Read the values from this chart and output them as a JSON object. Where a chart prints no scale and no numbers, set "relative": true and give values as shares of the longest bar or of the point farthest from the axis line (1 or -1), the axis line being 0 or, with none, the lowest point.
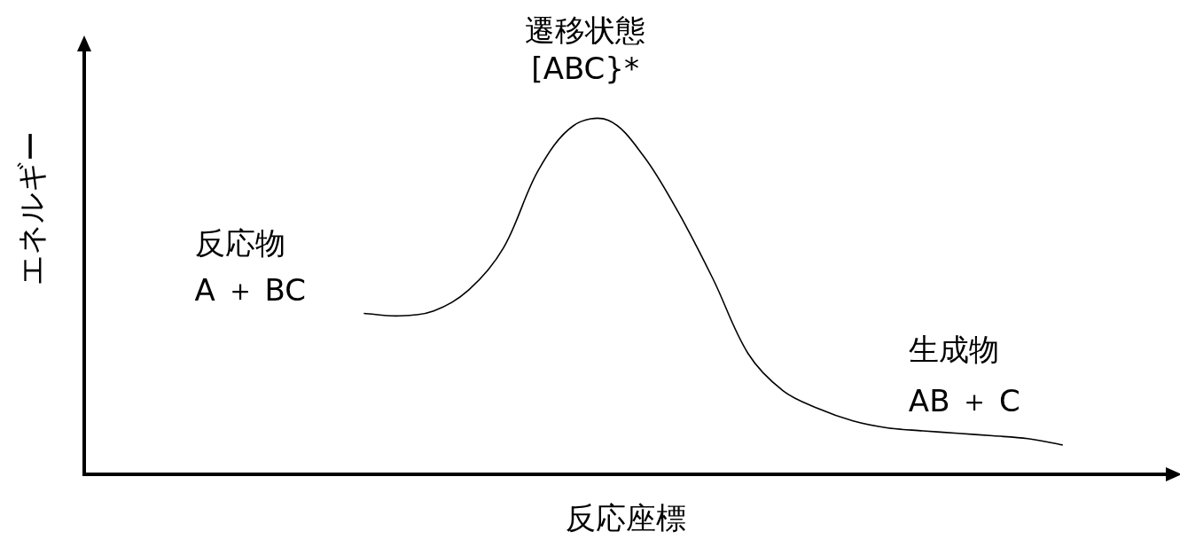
{
  "chart_data": {
    "type": "line",
    "relative": true,
    "xlabel": "反応座標",
    "ylabel": "エネルギー",
    "categories": [
      null,
      null,
      null,
      null,
      null,
      null,
      null,
      null,
      null,
      null,
      null,
      null,
      null,
      null,
      null,
      null,
      null,
      null,
      null,
      null,
      null,
      null,
      null,
      null,
      null,
      null,
      null,
      null,
      null,
      null,
      null,
      null
    ],
    "series": [
      {
        "color": "#000000",
        "values": [
          null,
          null,
          null,
          null,
          null,
          null,
          null,
          null,
          0.454,
          0.447,
          0.461,
          0.52,
          0.64,
          0.86,
          0.985,
          1,
          0.9,
          0.74,
          0.55,
          0.34,
          0.235,
          0.185,
          0.15,
          0.13,
          0.122,
          0.115,
          0.108,
          0.1,
          0.082,
          null,
          null,
          null
        ]
      }
    ],
    "annotations": [
      "遷移状態",
      "[ABC}*",
      "反応物",
      "A ＋ BC",
      "生成物",
      "AB ＋ C"
    ],
    "grid": false,
    "legend": false,
    "marker": "none",
    "line_style": "solid"
  }
}
